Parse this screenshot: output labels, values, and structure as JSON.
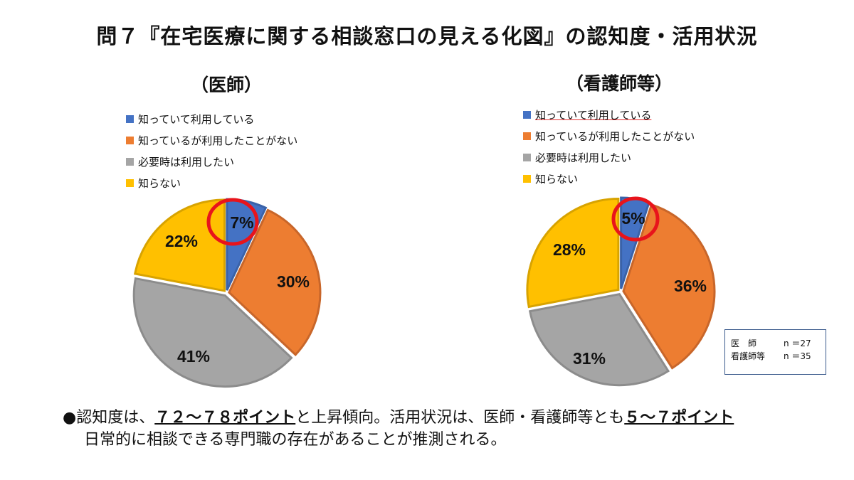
{
  "title": "問７『在宅医療に関する相談窓口の見える化図』の認知度・活用状況",
  "colors": {
    "blue": "#4472C4",
    "orange": "#ED7D31",
    "gray": "#A5A5A5",
    "yellow": "#FFC000",
    "highlight": "#E8141B"
  },
  "chart_data": [
    {
      "type": "pie",
      "title": "（医師）",
      "legend": [
        "知っていて利用している",
        "知っているが利用したことがない",
        "必要時は利用したい",
        "知らない"
      ],
      "values": [
        7,
        30,
        41,
        22
      ],
      "labels": [
        "7%",
        "30%",
        "41%",
        "22%"
      ],
      "highlight_slice": 0
    },
    {
      "type": "pie",
      "title": "（看護師等）",
      "legend": [
        "知っていて利用している",
        "知っているが利用したことがない",
        "必要時は利用したい",
        "知らない"
      ],
      "values": [
        5,
        36,
        31,
        28
      ],
      "labels": [
        "5%",
        "36%",
        "31%",
        "28%"
      ],
      "highlight_slice": 0
    }
  ],
  "sample_box": [
    {
      "label": "医　師",
      "n": "n ＝27"
    },
    {
      "label": "看護師等",
      "n": "n ＝35"
    }
  ],
  "conclusion": {
    "bullet": "●",
    "l1_a": "認知度は、",
    "l1_b": "７２～７８ポイント",
    "l1_c": "と上昇傾向。活用状況は、医師・看護師等とも",
    "l1_d": "５～７ポイント",
    "l2": "日常的に相談できる専門職の存在があることが推測される。"
  }
}
